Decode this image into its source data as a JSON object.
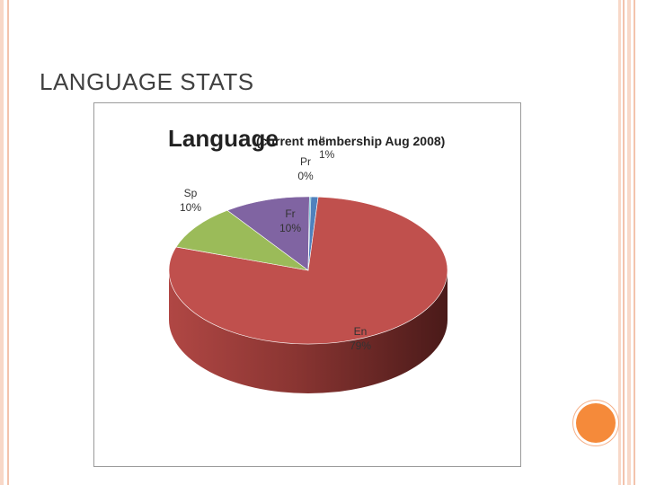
{
  "slide": {
    "title": "LANGUAGE STATS"
  },
  "colors": {
    "accent": "#f58a3a",
    "frame": "#f3c3ad",
    "title_text": "#404040"
  },
  "chart_data": {
    "type": "pie",
    "title": "Language",
    "subtitle": "(current membership Aug 2008)",
    "three_d": true,
    "slices": [
      {
        "label": "En",
        "value": 79,
        "value_label": "79%",
        "color": "#c0504d"
      },
      {
        "label": "Sp",
        "value": 10,
        "value_label": "10%",
        "color": "#9bbb59"
      },
      {
        "label": "Fr",
        "value": 10,
        "value_label": "10%",
        "color": "#8064a2"
      },
      {
        "label": "Pr",
        "value": 0,
        "value_label": "0%",
        "color": "#4bacc6"
      },
      {
        "label": "It",
        "value": 1,
        "value_label": "1%",
        "color": "#4f81bd"
      }
    ]
  }
}
